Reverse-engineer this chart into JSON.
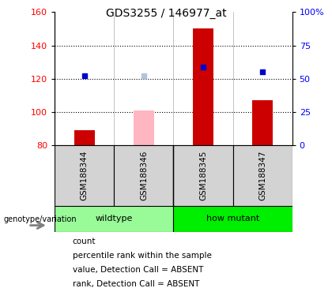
{
  "title": "GDS3255 / 146977_at",
  "samples": [
    "GSM188344",
    "GSM188346",
    "GSM188345",
    "GSM188347"
  ],
  "groups": [
    "wildtype",
    "wildtype",
    "how mutant",
    "how mutant"
  ],
  "group_labels": [
    "wildtype",
    "how mutant"
  ],
  "bar_bottom": 80,
  "ylim_left": [
    80,
    160
  ],
  "ylim_right": [
    0,
    100
  ],
  "yticks_left": [
    80,
    100,
    120,
    140,
    160
  ],
  "yticks_right": [
    0,
    25,
    50,
    75,
    100
  ],
  "yticklabels_right": [
    "0",
    "25",
    "50",
    "75",
    "100%"
  ],
  "count_values": [
    89,
    null,
    150,
    107
  ],
  "count_color": "#CC0000",
  "count_absent_values": [
    null,
    101,
    null,
    null
  ],
  "count_absent_color": "#FFB6C1",
  "rank_values": [
    122,
    null,
    127,
    124
  ],
  "rank_color": "#0000CC",
  "rank_absent_values": [
    null,
    122,
    null,
    null
  ],
  "rank_absent_color": "#B0C4DE",
  "genotype_label": "genotype/variation",
  "legend_items": [
    "count",
    "percentile rank within the sample",
    "value, Detection Call = ABSENT",
    "rank, Detection Call = ABSENT"
  ],
  "legend_colors": [
    "#CC0000",
    "#0000CC",
    "#FFB6C1",
    "#B0C4DE"
  ],
  "sample_area_bg": "#D3D3D3",
  "wildtype_color": "#98FB98",
  "mutant_color": "#00EE00",
  "group_line_color": "#000000",
  "grid_dotted_color": "#000000",
  "title_fontsize": 10,
  "tick_fontsize": 8,
  "label_fontsize": 7,
  "legend_fontsize": 7.5
}
